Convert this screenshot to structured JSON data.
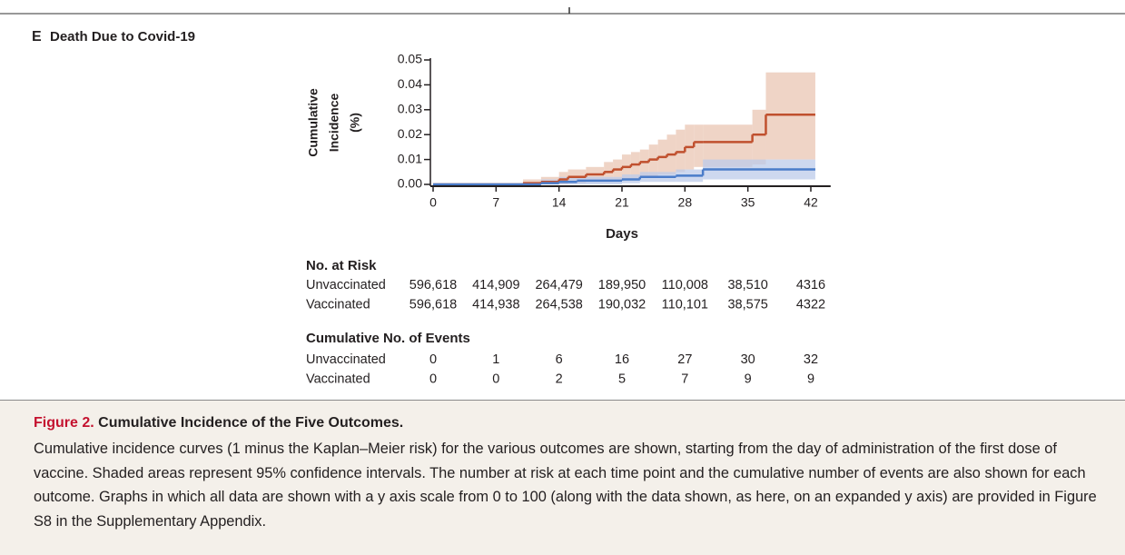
{
  "panel": {
    "letter": "E",
    "title": "Death Due to Covid-19"
  },
  "chart_data": {
    "type": "step",
    "y_label": [
      "Cumulative",
      "Incidence",
      "(%)"
    ],
    "x_label": "Days",
    "xlim": [
      0,
      44
    ],
    "xticks": [
      0,
      7,
      14,
      21,
      28,
      35,
      42
    ],
    "ylim": [
      0,
      0.05
    ],
    "yticks": [
      {
        "value": 0,
        "label": "0.00"
      },
      {
        "value": 0.01,
        "label": "0.01"
      },
      {
        "value": 0.02,
        "label": "0.02"
      },
      {
        "value": 0.03,
        "label": "0.03"
      },
      {
        "value": 0.04,
        "label": "0.04"
      },
      {
        "value": 0.05,
        "label": "0.05"
      }
    ],
    "series": [
      {
        "name": "Unvaccinated",
        "color": "#c0502e",
        "band_color": "#e9c6b3",
        "x": [
          0,
          10,
          12,
          14,
          15,
          17,
          19,
          20,
          21,
          22,
          23,
          24,
          25,
          26,
          27,
          28,
          29,
          30,
          35.5,
          37,
          42.5
        ],
        "values": [
          0,
          0.0005,
          0.001,
          0.002,
          0.003,
          0.004,
          0.005,
          0.006,
          0.007,
          0.008,
          0.009,
          0.01,
          0.011,
          0.012,
          0.013,
          0.015,
          0.017,
          0.017,
          0.02,
          0.028,
          0.028
        ],
        "lower": [
          0,
          0,
          0,
          0,
          0.0005,
          0.001,
          0.001,
          0.0015,
          0.002,
          0.002,
          0.003,
          0.003,
          0.004,
          0.004,
          0.005,
          0.006,
          0.007,
          0.007,
          0.008,
          0.01,
          0.01
        ],
        "upper": [
          0,
          0.002,
          0.003,
          0.005,
          0.006,
          0.007,
          0.009,
          0.01,
          0.012,
          0.013,
          0.014,
          0.016,
          0.018,
          0.02,
          0.022,
          0.024,
          0.024,
          0.024,
          0.03,
          0.045,
          0.045
        ]
      },
      {
        "name": "Vaccinated",
        "color": "#4a7cc9",
        "band_color": "#bccbe9",
        "x": [
          0,
          12,
          14,
          16,
          21,
          23,
          27,
          30,
          42.5
        ],
        "values": [
          0,
          0.0005,
          0.001,
          0.0015,
          0.002,
          0.003,
          0.0035,
          0.006,
          0.006
        ],
        "lower": [
          0,
          0,
          0,
          0,
          0.0005,
          0.001,
          0.001,
          0.002,
          0.002
        ],
        "upper": [
          0,
          0.002,
          0.003,
          0.003,
          0.004,
          0.005,
          0.006,
          0.01,
          0.01
        ]
      }
    ]
  },
  "risk_table": {
    "title": "No. at Risk",
    "rows": [
      {
        "label": "Unvaccinated",
        "values": [
          "596,618",
          "414,909",
          "264,479",
          "189,950",
          "110,008",
          "38,510",
          "4316"
        ]
      },
      {
        "label": "Vaccinated",
        "values": [
          "596,618",
          "414,938",
          "264,538",
          "190,032",
          "110,101",
          "38,575",
          "4322"
        ]
      }
    ]
  },
  "events_table": {
    "title": "Cumulative No. of Events",
    "rows": [
      {
        "label": "Unvaccinated",
        "values": [
          0,
          1,
          6,
          16,
          27,
          30,
          32
        ]
      },
      {
        "label": "Vaccinated",
        "values": [
          0,
          0,
          2,
          5,
          7,
          9,
          9
        ]
      }
    ]
  },
  "caption": {
    "figure_label": "Figure 2.",
    "figure_title": "Cumulative Incidence of the Five Outcomes.",
    "text": "Cumulative incidence curves (1 minus the Kaplan–Meier risk) for the various outcomes are shown, starting from the day of administration of the first dose of vaccine. Shaded areas represent 95% confidence intervals. The number at risk at each time point and the cumulative number of events are also shown for each outcome. Graphs in which all data are shown with a y axis scale from 0 to 100 (along with the data shown, as here, on an expanded y axis) are provided in Figure S8 in the Supplementary Appendix."
  }
}
